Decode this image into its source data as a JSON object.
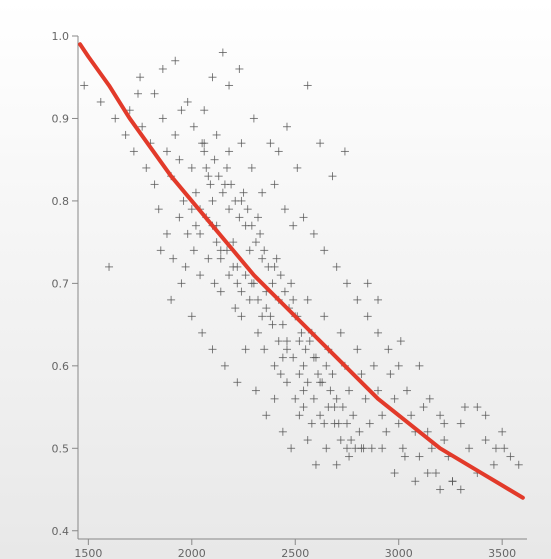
{
  "chart_data": {
    "type": "scatter",
    "title": "",
    "xlabel": "",
    "ylabel": "",
    "xlim": [
      1450,
      3620
    ],
    "ylim": [
      0.39,
      1.0
    ],
    "x_ticks": [
      1500,
      2000,
      2500,
      3000,
      3500
    ],
    "x_tick_labels": [
      "1500",
      "2000",
      "2500",
      "3000",
      "3500"
    ],
    "y_ticks": [
      0.4,
      0.5,
      0.6,
      0.7,
      0.8,
      0.9,
      1.0
    ],
    "y_tick_labels": [
      "0.4",
      "0.5",
      "0.6",
      "0.7",
      "0.8",
      "0.9",
      "1.0"
    ],
    "grid": false,
    "legend": "none",
    "colors": {
      "background_top": "#ffffff",
      "background_bottom": "#e8e8e8",
      "points": "#555555",
      "fit_line": "#e23a2a",
      "axis": "#888888",
      "ticks": "#888888"
    },
    "series": [
      {
        "type": "scatter",
        "marker": "plus",
        "color": "#555555",
        "points": [
          [
            1480,
            0.94
          ],
          [
            1600,
            0.72
          ],
          [
            1560,
            0.92
          ],
          [
            1630,
            0.9
          ],
          [
            1680,
            0.88
          ],
          [
            1700,
            0.91
          ],
          [
            1720,
            0.86
          ],
          [
            1740,
            0.93
          ],
          [
            1760,
            0.89
          ],
          [
            1780,
            0.84
          ],
          [
            1800,
            0.87
          ],
          [
            1820,
            0.82
          ],
          [
            1840,
            0.79
          ],
          [
            1860,
            0.9
          ],
          [
            1880,
            0.86
          ],
          [
            1900,
            0.83
          ],
          [
            1920,
            0.88
          ],
          [
            1940,
            0.85
          ],
          [
            1960,
            0.8
          ],
          [
            1980,
            0.76
          ],
          [
            2000,
            0.84
          ],
          [
            2020,
            0.81
          ],
          [
            2040,
            0.79
          ],
          [
            2060,
            0.87
          ],
          [
            2080,
            0.83
          ],
          [
            2100,
            0.8
          ],
          [
            2120,
            0.77
          ],
          [
            2140,
            0.74
          ],
          [
            2160,
            0.82
          ],
          [
            2180,
            0.79
          ],
          [
            2200,
            0.75
          ],
          [
            2220,
            0.72
          ],
          [
            2240,
            0.8
          ],
          [
            2260,
            0.77
          ],
          [
            2280,
            0.74
          ],
          [
            2300,
            0.7
          ],
          [
            2320,
            0.78
          ],
          [
            2340,
            0.73
          ],
          [
            2360,
            0.69
          ],
          [
            2380,
            0.66
          ],
          [
            2400,
            0.72
          ],
          [
            2420,
            0.68
          ],
          [
            2440,
            0.65
          ],
          [
            2460,
            0.62
          ],
          [
            2480,
            0.7
          ],
          [
            2500,
            0.66
          ],
          [
            2520,
            0.63
          ],
          [
            2540,
            0.6
          ],
          [
            2560,
            0.68
          ],
          [
            2580,
            0.64
          ],
          [
            2600,
            0.61
          ],
          [
            2620,
            0.58
          ],
          [
            2640,
            0.66
          ],
          [
            2660,
            0.62
          ],
          [
            2680,
            0.59
          ],
          [
            2700,
            0.56
          ],
          [
            2720,
            0.64
          ],
          [
            2740,
            0.6
          ],
          [
            2760,
            0.57
          ],
          [
            2780,
            0.54
          ],
          [
            2800,
            0.62
          ],
          [
            2820,
            0.59
          ],
          [
            2840,
            0.56
          ],
          [
            2860,
            0.53
          ],
          [
            2880,
            0.6
          ],
          [
            2900,
            0.57
          ],
          [
            2920,
            0.54
          ],
          [
            2940,
            0.52
          ],
          [
            2960,
            0.59
          ],
          [
            2980,
            0.56
          ],
          [
            3000,
            0.53
          ],
          [
            3020,
            0.5
          ],
          [
            3040,
            0.57
          ],
          [
            3060,
            0.54
          ],
          [
            3080,
            0.52
          ],
          [
            3100,
            0.49
          ],
          [
            3120,
            0.55
          ],
          [
            3140,
            0.52
          ],
          [
            3160,
            0.5
          ],
          [
            3180,
            0.47
          ],
          [
            3200,
            0.54
          ],
          [
            3220,
            0.51
          ],
          [
            3240,
            0.49
          ],
          [
            3260,
            0.46
          ],
          [
            3300,
            0.53
          ],
          [
            3340,
            0.5
          ],
          [
            3380,
            0.47
          ],
          [
            3420,
            0.51
          ],
          [
            3460,
            0.48
          ],
          [
            3500,
            0.52
          ],
          [
            3540,
            0.49
          ],
          [
            3580,
            0.48
          ],
          [
            1750,
            0.95
          ],
          [
            1820,
            0.93
          ],
          [
            1860,
            0.96
          ],
          [
            1920,
            0.97
          ],
          [
            1980,
            0.92
          ],
          [
            2060,
            0.91
          ],
          [
            2100,
            0.95
          ],
          [
            2150,
            0.98
          ],
          [
            2180,
            0.94
          ],
          [
            2230,
            0.96
          ],
          [
            2300,
            0.9
          ],
          [
            2380,
            0.87
          ],
          [
            2420,
            0.86
          ],
          [
            2460,
            0.89
          ],
          [
            2510,
            0.84
          ],
          [
            2560,
            0.94
          ],
          [
            2620,
            0.87
          ],
          [
            2680,
            0.83
          ],
          [
            2740,
            0.86
          ],
          [
            2850,
            0.7
          ],
          [
            2900,
            0.68
          ],
          [
            3010,
            0.63
          ],
          [
            3100,
            0.6
          ],
          [
            3150,
            0.56
          ],
          [
            3220,
            0.53
          ],
          [
            3320,
            0.55
          ],
          [
            3380,
            0.55
          ],
          [
            3420,
            0.54
          ],
          [
            3470,
            0.5
          ],
          [
            3510,
            0.5
          ],
          [
            1900,
            0.68
          ],
          [
            1950,
            0.7
          ],
          [
            2000,
            0.66
          ],
          [
            2050,
            0.64
          ],
          [
            2100,
            0.62
          ],
          [
            2160,
            0.6
          ],
          [
            2220,
            0.58
          ],
          [
            2260,
            0.62
          ],
          [
            2310,
            0.57
          ],
          [
            2360,
            0.54
          ],
          [
            2400,
            0.56
          ],
          [
            2440,
            0.52
          ],
          [
            2480,
            0.5
          ],
          [
            2520,
            0.54
          ],
          [
            2560,
            0.51
          ],
          [
            2600,
            0.48
          ],
          [
            2650,
            0.5
          ],
          [
            2700,
            0.48
          ],
          [
            2760,
            0.49
          ],
          [
            2820,
            0.5
          ],
          [
            2870,
            0.5
          ],
          [
            2920,
            0.5
          ],
          [
            2980,
            0.47
          ],
          [
            3030,
            0.49
          ],
          [
            3080,
            0.46
          ],
          [
            3140,
            0.47
          ],
          [
            3200,
            0.45
          ],
          [
            3260,
            0.46
          ],
          [
            3300,
            0.45
          ],
          [
            2060,
            0.86
          ],
          [
            2070,
            0.84
          ],
          [
            2090,
            0.82
          ],
          [
            2110,
            0.85
          ],
          [
            2130,
            0.83
          ],
          [
            2150,
            0.81
          ],
          [
            2170,
            0.84
          ],
          [
            2190,
            0.82
          ],
          [
            2210,
            0.8
          ],
          [
            2230,
            0.78
          ],
          [
            2250,
            0.81
          ],
          [
            2270,
            0.79
          ],
          [
            2290,
            0.77
          ],
          [
            2310,
            0.75
          ],
          [
            2330,
            0.76
          ],
          [
            2350,
            0.74
          ],
          [
            2370,
            0.72
          ],
          [
            2390,
            0.7
          ],
          [
            2410,
            0.73
          ],
          [
            2430,
            0.71
          ],
          [
            2450,
            0.69
          ],
          [
            2470,
            0.67
          ],
          [
            2490,
            0.68
          ],
          [
            2510,
            0.66
          ],
          [
            2530,
            0.64
          ],
          [
            2550,
            0.62
          ],
          [
            2570,
            0.63
          ],
          [
            2590,
            0.61
          ],
          [
            2610,
            0.59
          ],
          [
            2630,
            0.58
          ],
          [
            2650,
            0.6
          ],
          [
            2670,
            0.57
          ],
          [
            2690,
            0.55
          ],
          [
            2710,
            0.53
          ],
          [
            2730,
            0.55
          ],
          [
            2750,
            0.53
          ],
          [
            2770,
            0.51
          ],
          [
            2790,
            0.5
          ],
          [
            2810,
            0.52
          ],
          [
            2830,
            0.5
          ],
          [
            2000,
            0.79
          ],
          [
            2020,
            0.77
          ],
          [
            2040,
            0.76
          ],
          [
            2070,
            0.78
          ],
          [
            2100,
            0.77
          ],
          [
            2120,
            0.75
          ],
          [
            2140,
            0.73
          ],
          [
            2170,
            0.74
          ],
          [
            2200,
            0.72
          ],
          [
            2220,
            0.7
          ],
          [
            2240,
            0.69
          ],
          [
            2260,
            0.71
          ],
          [
            2290,
            0.7
          ],
          [
            2320,
            0.68
          ],
          [
            2340,
            0.66
          ],
          [
            2360,
            0.67
          ],
          [
            2390,
            0.65
          ],
          [
            2420,
            0.63
          ],
          [
            2440,
            0.61
          ],
          [
            2460,
            0.63
          ],
          [
            2490,
            0.61
          ],
          [
            2520,
            0.59
          ],
          [
            2540,
            0.57
          ],
          [
            2560,
            0.58
          ],
          [
            2590,
            0.56
          ],
          [
            2620,
            0.54
          ],
          [
            2640,
            0.53
          ],
          [
            2660,
            0.55
          ],
          [
            2690,
            0.53
          ],
          [
            2720,
            0.51
          ],
          [
            2750,
            0.5
          ],
          [
            1850,
            0.74
          ],
          [
            1880,
            0.76
          ],
          [
            1910,
            0.73
          ],
          [
            1940,
            0.78
          ],
          [
            1970,
            0.72
          ],
          [
            2010,
            0.74
          ],
          [
            2040,
            0.71
          ],
          [
            2080,
            0.73
          ],
          [
            2110,
            0.7
          ],
          [
            2140,
            0.69
          ],
          [
            2180,
            0.71
          ],
          [
            2210,
            0.67
          ],
          [
            2240,
            0.66
          ],
          [
            2280,
            0.68
          ],
          [
            2320,
            0.64
          ],
          [
            2350,
            0.62
          ],
          [
            2400,
            0.6
          ],
          [
            2430,
            0.59
          ],
          [
            2460,
            0.58
          ],
          [
            2500,
            0.56
          ],
          [
            2540,
            0.55
          ],
          [
            2580,
            0.53
          ],
          [
            1950,
            0.91
          ],
          [
            2010,
            0.89
          ],
          [
            2050,
            0.87
          ],
          [
            2120,
            0.88
          ],
          [
            2180,
            0.86
          ],
          [
            2240,
            0.87
          ],
          [
            2290,
            0.84
          ],
          [
            2340,
            0.81
          ],
          [
            2400,
            0.82
          ],
          [
            2450,
            0.79
          ],
          [
            2490,
            0.77
          ],
          [
            2540,
            0.78
          ],
          [
            2590,
            0.76
          ],
          [
            2640,
            0.74
          ],
          [
            2700,
            0.72
          ],
          [
            2750,
            0.7
          ],
          [
            2800,
            0.68
          ],
          [
            2850,
            0.66
          ],
          [
            2900,
            0.64
          ],
          [
            2950,
            0.62
          ],
          [
            3000,
            0.6
          ]
        ]
      },
      {
        "type": "line",
        "color": "#e23a2a",
        "points": [
          [
            1460,
            0.99
          ],
          [
            1500,
            0.975
          ],
          [
            1600,
            0.94
          ],
          [
            1700,
            0.9
          ],
          [
            1800,
            0.865
          ],
          [
            1900,
            0.83
          ],
          [
            2000,
            0.8
          ],
          [
            2100,
            0.77
          ],
          [
            2200,
            0.74
          ],
          [
            2300,
            0.71
          ],
          [
            2400,
            0.685
          ],
          [
            2500,
            0.66
          ],
          [
            2600,
            0.635
          ],
          [
            2700,
            0.61
          ],
          [
            2800,
            0.585
          ],
          [
            2900,
            0.56
          ],
          [
            3000,
            0.54
          ],
          [
            3100,
            0.52
          ],
          [
            3200,
            0.5
          ],
          [
            3300,
            0.485
          ],
          [
            3400,
            0.47
          ],
          [
            3500,
            0.455
          ],
          [
            3600,
            0.44
          ]
        ]
      }
    ]
  }
}
